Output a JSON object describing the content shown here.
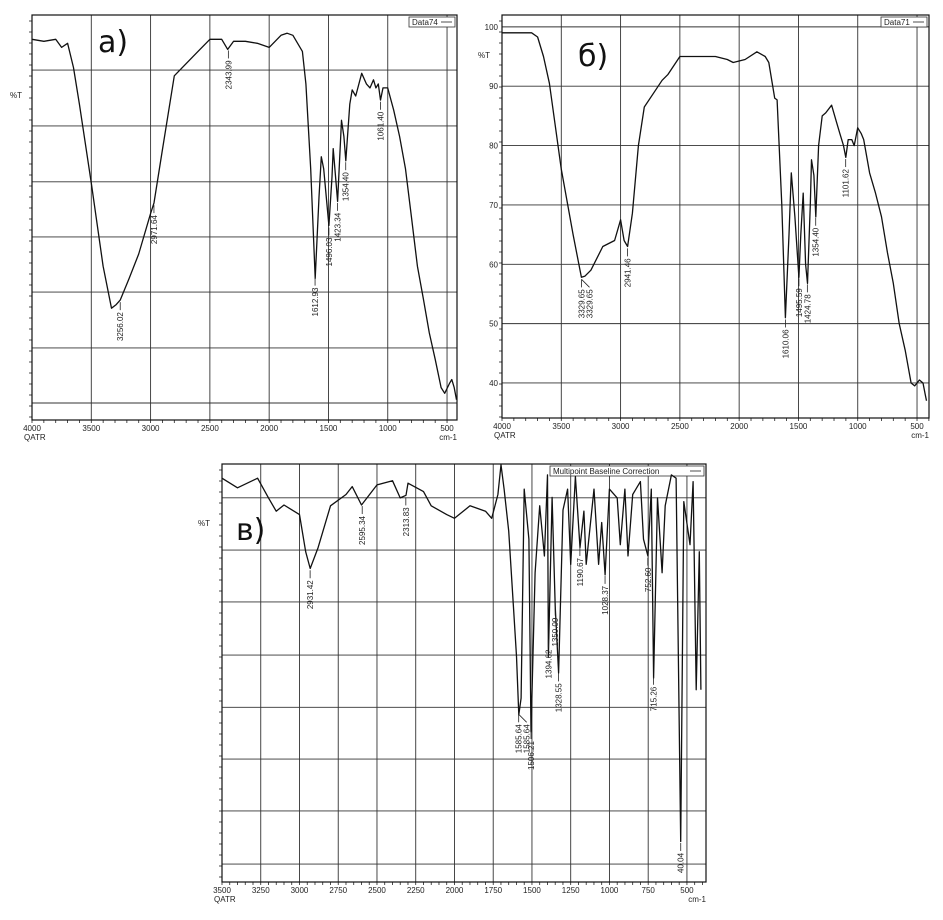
{
  "chart_data": [
    {
      "type": "line",
      "panel_label": "а)",
      "legend": "Data74",
      "ylabel": "%T",
      "xlabel_left": "QATR",
      "xlabel_right": "cm-1",
      "xlim": [
        4000,
        416
      ],
      "ylim": [
        0,
        100
      ],
      "x_ticks": [
        "4000",
        "3500",
        "3000",
        "2500",
        "2000",
        "1500",
        "1000",
        "500"
      ],
      "y_ticks": [],
      "grid": true,
      "series": [
        {
          "x": [
            4000,
            3900,
            3800,
            3750,
            3700,
            3650,
            3600,
            3500,
            3400,
            3330,
            3290,
            3256,
            3180,
            3100,
            3000,
            2971,
            2900,
            2800,
            2700,
            2600,
            2500,
            2400,
            2350,
            2300,
            2200,
            2100,
            2000,
            1900,
            1850,
            1800,
            1720,
            1690,
            1650,
            1612,
            1580,
            1560,
            1540,
            1496,
            1470,
            1460,
            1423,
            1390,
            1370,
            1354,
            1320,
            1300,
            1270,
            1220,
            1180,
            1150,
            1120,
            1100,
            1080,
            1061,
            1040,
            1000,
            950,
            900,
            850,
            800,
            750,
            700,
            650,
            600,
            550,
            520,
            480,
            460,
            440,
            420
          ],
          "y": [
            94,
            93.5,
            94,
            92,
            93,
            87,
            78,
            58.5,
            38,
            27.6,
            28.5,
            29.6,
            35,
            41,
            51,
            53.6,
            66.7,
            85,
            88,
            91,
            94,
            94,
            91.5,
            93.5,
            93.5,
            93,
            92,
            95,
            95.5,
            95,
            91,
            83,
            62,
            35,
            55,
            65,
            62,
            48,
            60,
            67,
            54,
            74,
            70,
            64,
            78,
            81.5,
            80,
            85.6,
            83,
            82,
            84,
            82,
            83,
            79,
            82,
            82,
            76.5,
            70,
            62,
            50,
            38,
            30,
            21.5,
            15,
            8,
            6.6,
            9,
            10,
            8,
            5
          ]
        }
      ],
      "peaks": [
        "3256.02",
        "2971.64",
        "2343.99",
        "1612.93",
        "1496.03",
        "1423.34",
        "1354.40",
        "1061.40"
      ]
    },
    {
      "type": "line",
      "panel_label": "б)",
      "legend": "Data71",
      "ylabel": "%T",
      "xlabel_left": "QATR",
      "xlabel_right": "cm-1",
      "xlim": [
        4000,
        399
      ],
      "ylim": [
        34.1,
        102
      ],
      "x_ticks": [
        "4000",
        "3500",
        "3000",
        "2500",
        "2000",
        "1500",
        "1000",
        "500"
      ],
      "y_ticks": [
        "100",
        "90",
        "80",
        "70",
        "60",
        "50",
        "40"
      ],
      "grid": true,
      "series": [
        {
          "x": [
            4000,
            3850,
            3750,
            3700,
            3650,
            3600,
            3500,
            3400,
            3330,
            3300,
            3250,
            3150,
            3050,
            3000,
            2970,
            2941,
            2900,
            2850,
            2800,
            2700,
            2650,
            2600,
            2500,
            2400,
            2300,
            2200,
            2100,
            2050,
            1950,
            1850,
            1780,
            1750,
            1700,
            1680,
            1640,
            1610,
            1580,
            1560,
            1530,
            1496,
            1480,
            1460,
            1440,
            1424,
            1400,
            1390,
            1370,
            1354,
            1330,
            1300,
            1270,
            1220,
            1180,
            1150,
            1120,
            1101,
            1080,
            1050,
            1030,
            1000,
            970,
            950,
            900,
            850,
            800,
            750,
            700,
            650,
            600,
            550,
            520,
            480,
            450,
            430,
            420
          ],
          "y": [
            99,
            99,
            99,
            98.3,
            95,
            90.5,
            76,
            65,
            57.8,
            58,
            59,
            63,
            64,
            67.5,
            64,
            63,
            68.6,
            80,
            86.5,
            89.5,
            91,
            92,
            95,
            95,
            95,
            95,
            94.5,
            94,
            94.5,
            95.8,
            95,
            94,
            88,
            87.7,
            70,
            51,
            65,
            75.4,
            68,
            57.8,
            65,
            72,
            60,
            56.8,
            70,
            77.6,
            75,
            68,
            80,
            85,
            85.5,
            86.8,
            84,
            82,
            80,
            78,
            81,
            81,
            80,
            83,
            82,
            81,
            75.4,
            72,
            68,
            62,
            56.8,
            50,
            45.5,
            40,
            39.5,
            40.5,
            40,
            38,
            37
          ]
        }
      ],
      "peaks": [
        "3329.65",
        "3329.65",
        "2941.46",
        "1610.06",
        "1495.59",
        "1424.78",
        "1354.40",
        "1101.62"
      ]
    },
    {
      "type": "line",
      "panel_label": "в)",
      "legend": "Multipoint Baseline Correction",
      "ylabel": "%T",
      "xlabel_left": "QATR",
      "xlabel_right": "cm-1",
      "xlim": [
        3500,
        377
      ],
      "ylim": [
        0,
        100
      ],
      "x_ticks": [
        "3500",
        "3250",
        "3000",
        "2750",
        "2500",
        "2250",
        "2000",
        "1750",
        "1500",
        "1250",
        "1000",
        "750",
        "500"
      ],
      "y_ticks": [],
      "grid": true,
      "series": [
        {
          "x": [
            3500,
            3400,
            3270,
            3200,
            3150,
            3100,
            3000,
            2960,
            2931,
            2880,
            2800,
            2700,
            2660,
            2600,
            2500,
            2400,
            2350,
            2313,
            2300,
            2200,
            2150,
            2050,
            2000,
            1900,
            1800,
            1760,
            1720,
            1700,
            1680,
            1650,
            1620,
            1600,
            1585,
            1570,
            1550,
            1520,
            1506,
            1480,
            1450,
            1420,
            1400,
            1394,
            1370,
            1350,
            1328,
            1300,
            1270,
            1250,
            1220,
            1190,
            1165,
            1150,
            1100,
            1070,
            1050,
            1028,
            1000,
            950,
            930,
            900,
            880,
            850,
            800,
            780,
            752,
            730,
            715,
            690,
            660,
            640,
            600,
            570,
            540,
            520,
            480,
            460,
            440,
            420,
            410
          ],
          "y": [
            96.6,
            94.3,
            96.6,
            91.9,
            88.7,
            90.2,
            87.9,
            79,
            75,
            80,
            90,
            92.7,
            94.6,
            90.2,
            95,
            96,
            91.9,
            92.5,
            95.4,
            93.4,
            90,
            87.9,
            87,
            90,
            88.7,
            87,
            92.7,
            99.8,
            94,
            84,
            66,
            54,
            40,
            44,
            94,
            82,
            35.9,
            74,
            90,
            78,
            97.4,
            54,
            92,
            66,
            50,
            89,
            94,
            76,
            97,
            80,
            88.7,
            76,
            94,
            76,
            86,
            73.5,
            94,
            91.9,
            80.7,
            94,
            78,
            92.7,
            95.8,
            82,
            78,
            94,
            48.8,
            91.9,
            74,
            90,
            97.4,
            96.6,
            9.7,
            91,
            80.7,
            95.8,
            46,
            79,
            46
          ]
        }
      ],
      "peaks": [
        "2931.42",
        "2595.34",
        "2313.83",
        "1585.64",
        "1585.64",
        "1506.21",
        "1394.62",
        "1350.09",
        "1328.55",
        "1190.67",
        "1028.37",
        "752.60",
        "715.26",
        "40.04"
      ]
    }
  ]
}
